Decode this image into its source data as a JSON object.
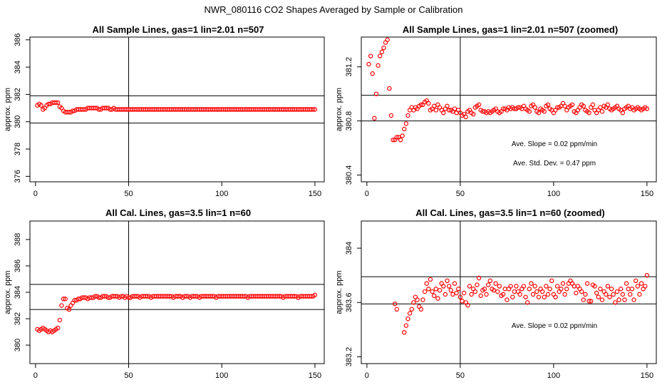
{
  "figure": {
    "title": "NWR_080116  CO2 Shapes Averaged by Sample or Calibration"
  },
  "colors": {
    "points": "#ff0000",
    "axes": "#000000",
    "lines": "#000000",
    "background": "#ffffff"
  },
  "chart_data": [
    {
      "type": "scatter",
      "title": "All Sample Lines, gas=1 lin=2.01 n=507",
      "xlabel": "",
      "ylabel": "approx. ppm",
      "xlim": [
        -3,
        155
      ],
      "ylim": [
        375.6,
        386.2
      ],
      "xticks": [
        0,
        50,
        100,
        150
      ],
      "yticks": [
        376,
        378,
        380,
        382,
        384,
        386
      ],
      "hlines": [
        381.9,
        379.9
      ],
      "vline": 50,
      "annotations": [],
      "x": [
        1,
        2,
        3,
        4,
        5,
        6,
        7,
        8,
        9,
        10,
        11,
        12,
        13,
        14,
        15,
        16,
        17,
        18,
        19,
        20,
        21,
        22,
        23,
        24,
        25,
        26,
        27,
        28,
        29,
        30,
        31,
        32,
        33,
        34,
        35,
        36,
        37,
        38,
        39,
        40,
        41,
        42,
        43,
        44,
        45,
        46,
        47,
        48,
        49,
        50,
        51,
        52,
        53,
        54,
        55,
        56,
        57,
        58,
        59,
        60,
        61,
        62,
        63,
        64,
        65,
        66,
        67,
        68,
        69,
        70,
        71,
        72,
        73,
        74,
        75,
        76,
        77,
        78,
        79,
        80,
        81,
        82,
        83,
        84,
        85,
        86,
        87,
        88,
        89,
        90,
        91,
        92,
        93,
        94,
        95,
        96,
        97,
        98,
        99,
        100,
        101,
        102,
        103,
        104,
        105,
        106,
        107,
        108,
        109,
        110,
        111,
        112,
        113,
        114,
        115,
        116,
        117,
        118,
        119,
        120,
        121,
        122,
        123,
        124,
        125,
        126,
        127,
        128,
        129,
        130,
        131,
        132,
        133,
        134,
        135,
        136,
        137,
        138,
        139,
        140,
        141,
        142,
        143,
        144,
        145,
        146,
        147,
        148,
        149,
        150
      ],
      "y": [
        381.2,
        381.3,
        381.2,
        380.9,
        381.0,
        381.2,
        381.3,
        381.3,
        381.4,
        381.4,
        381.4,
        381.4,
        381.1,
        381.0,
        380.8,
        380.7,
        380.7,
        380.7,
        380.7,
        380.8,
        380.8,
        380.9,
        380.9,
        380.9,
        380.9,
        380.9,
        380.9,
        381.0,
        381.0,
        381.0,
        381.0,
        381.0,
        381.0,
        380.9,
        380.9,
        381.0,
        381.0,
        381.0,
        381.0,
        380.9,
        380.9,
        381.0,
        380.9,
        380.9,
        380.9,
        380.9,
        380.9,
        380.9,
        380.9,
        380.9,
        380.9,
        380.9,
        380.9,
        380.9,
        380.9,
        380.9,
        380.9,
        380.9,
        380.9,
        380.9,
        380.9,
        380.9,
        380.9,
        380.9,
        380.9,
        380.9,
        380.9,
        380.9,
        380.9,
        380.9,
        380.9,
        380.9,
        380.9,
        380.9,
        380.9,
        380.9,
        380.9,
        380.9,
        380.9,
        380.9,
        380.9,
        380.9,
        380.9,
        380.9,
        380.9,
        380.9,
        380.9,
        380.9,
        380.9,
        380.9,
        380.9,
        380.9,
        380.9,
        380.9,
        380.9,
        380.9,
        380.9,
        380.9,
        380.9,
        380.9,
        380.9,
        380.9,
        380.9,
        380.9,
        380.9,
        380.9,
        380.9,
        380.9,
        380.9,
        380.9,
        380.9,
        380.9,
        380.9,
        380.9,
        380.9,
        380.9,
        380.9,
        380.9,
        380.9,
        380.9,
        380.9,
        380.9,
        380.9,
        380.9,
        380.9,
        380.9,
        380.9,
        380.9,
        380.9,
        380.9,
        380.9,
        380.9,
        380.9,
        380.9,
        380.9,
        380.9,
        380.9,
        380.9,
        380.9,
        380.9,
        380.9,
        380.9,
        380.9,
        380.9,
        380.9,
        380.9,
        380.9,
        380.9,
        380.9,
        380.9
      ]
    },
    {
      "type": "scatter",
      "title": "All Sample Lines, gas=1 lin=2.01 n=507 (zoomed)",
      "xlabel": "",
      "ylabel": "approx. ppm",
      "xlim": [
        -3,
        155
      ],
      "ylim": [
        380.35,
        381.42
      ],
      "xticks": [
        0,
        50,
        100,
        150
      ],
      "yticks": [
        380.4,
        380.8,
        381.2
      ],
      "hlines": [
        380.99,
        380.8
      ],
      "vline": 50,
      "annotations": [
        "Ave. Slope =  0.02  ppm/min",
        "Ave. Std. Dev. =  0.47  ppm"
      ],
      "x": [
        1,
        2,
        3,
        4,
        5,
        6,
        7,
        8,
        9,
        10,
        11,
        12,
        13,
        14,
        15,
        16,
        17,
        18,
        19,
        20,
        21,
        22,
        23,
        24,
        25,
        26,
        27,
        28,
        29,
        30,
        31,
        32,
        33,
        34,
        35,
        36,
        37,
        38,
        39,
        40,
        41,
        42,
        43,
        44,
        45,
        46,
        47,
        48,
        49,
        50,
        51,
        52,
        53,
        54,
        55,
        56,
        57,
        58,
        59,
        60,
        61,
        62,
        63,
        64,
        65,
        66,
        67,
        68,
        69,
        70,
        71,
        72,
        73,
        74,
        75,
        76,
        77,
        78,
        79,
        80,
        81,
        82,
        83,
        84,
        85,
        86,
        87,
        88,
        89,
        90,
        91,
        92,
        93,
        94,
        95,
        96,
        97,
        98,
        99,
        100,
        101,
        102,
        103,
        104,
        105,
        106,
        107,
        108,
        109,
        110,
        111,
        112,
        113,
        114,
        115,
        116,
        117,
        118,
        119,
        120,
        121,
        122,
        123,
        124,
        125,
        126,
        127,
        128,
        129,
        130,
        131,
        132,
        133,
        134,
        135,
        136,
        137,
        138,
        139,
        140,
        141,
        142,
        143,
        144,
        145,
        146,
        147,
        148,
        149,
        150
      ],
      "y": [
        381.22,
        381.28,
        381.15,
        380.82,
        381.0,
        381.21,
        381.28,
        381.31,
        381.34,
        381.38,
        381.4,
        381.04,
        380.84,
        380.66,
        380.66,
        380.68,
        380.68,
        380.66,
        380.69,
        380.74,
        380.78,
        380.84,
        380.88,
        380.9,
        380.88,
        380.9,
        380.89,
        380.91,
        380.92,
        380.92,
        380.94,
        380.95,
        380.93,
        380.88,
        380.89,
        380.91,
        380.88,
        380.92,
        380.9,
        380.88,
        380.86,
        380.89,
        380.91,
        380.88,
        380.88,
        380.87,
        380.89,
        380.86,
        380.88,
        380.86,
        380.84,
        380.85,
        380.83,
        380.87,
        380.88,
        380.86,
        380.85,
        380.9,
        380.91,
        380.92,
        380.88,
        380.87,
        380.87,
        380.86,
        380.87,
        380.86,
        380.87,
        380.88,
        380.89,
        380.87,
        380.86,
        380.87,
        380.89,
        380.89,
        380.88,
        380.9,
        380.89,
        380.9,
        380.89,
        380.89,
        380.9,
        380.9,
        380.89,
        380.91,
        380.89,
        380.88,
        380.87,
        380.91,
        380.92,
        380.9,
        380.87,
        380.86,
        380.89,
        380.88,
        380.87,
        380.91,
        380.92,
        380.89,
        380.88,
        380.86,
        380.88,
        380.9,
        380.9,
        380.91,
        380.93,
        380.91,
        380.88,
        380.9,
        380.91,
        380.92,
        380.87,
        380.86,
        380.88,
        380.9,
        380.92,
        380.91,
        380.88,
        380.87,
        380.86,
        380.9,
        380.92,
        380.88,
        380.86,
        380.88,
        380.9,
        380.87,
        380.91,
        380.9,
        380.92,
        380.89,
        380.88,
        380.89,
        380.9,
        380.91,
        380.89,
        380.88,
        380.86,
        380.89,
        380.9,
        380.91,
        380.89,
        380.9,
        380.88,
        380.89,
        380.9,
        380.89,
        380.88,
        380.89,
        380.9,
        380.89
      ]
    },
    {
      "type": "scatter",
      "title": "All Cal. Lines, gas=3.5 lin=1 n=60",
      "xlabel": "",
      "ylabel": "approx. ppm",
      "xlim": [
        -3,
        155
      ],
      "ylim": [
        378.6,
        389.4
      ],
      "xticks": [
        0,
        50,
        100,
        150
      ],
      "yticks": [
        380,
        382,
        384,
        386,
        388
      ],
      "hlines": [
        384.6,
        382.7
      ],
      "vline": 50,
      "annotations": [],
      "x": [
        1,
        2,
        3,
        4,
        5,
        6,
        7,
        8,
        9,
        10,
        11,
        12,
        13,
        14,
        15,
        16,
        17,
        18,
        19,
        20,
        21,
        22,
        23,
        24,
        25,
        26,
        27,
        28,
        29,
        30,
        31,
        32,
        33,
        34,
        35,
        36,
        37,
        38,
        39,
        40,
        41,
        42,
        43,
        44,
        45,
        46,
        47,
        48,
        49,
        50,
        51,
        52,
        53,
        54,
        55,
        56,
        57,
        58,
        59,
        60,
        61,
        62,
        63,
        64,
        65,
        66,
        67,
        68,
        69,
        70,
        71,
        72,
        73,
        74,
        75,
        76,
        77,
        78,
        79,
        80,
        81,
        82,
        83,
        84,
        85,
        86,
        87,
        88,
        89,
        90,
        91,
        92,
        93,
        94,
        95,
        96,
        97,
        98,
        99,
        100,
        101,
        102,
        103,
        104,
        105,
        106,
        107,
        108,
        109,
        110,
        111,
        112,
        113,
        114,
        115,
        116,
        117,
        118,
        119,
        120,
        121,
        122,
        123,
        124,
        125,
        126,
        127,
        128,
        129,
        130,
        131,
        132,
        133,
        134,
        135,
        136,
        137,
        138,
        139,
        140,
        141,
        142,
        143,
        144,
        145,
        146,
        147,
        148,
        149,
        150
      ],
      "y": [
        381.2,
        381.1,
        381.2,
        381.3,
        381.2,
        381.1,
        381.0,
        381.1,
        381.0,
        381.1,
        381.2,
        381.3,
        381.9,
        383.0,
        383.5,
        383.5,
        382.8,
        382.7,
        383.0,
        383.2,
        383.4,
        383.4,
        383.5,
        383.5,
        383.6,
        383.6,
        383.6,
        383.5,
        383.6,
        383.6,
        383.6,
        383.7,
        383.7,
        383.6,
        383.6,
        383.7,
        383.7,
        383.7,
        383.6,
        383.6,
        383.7,
        383.7,
        383.7,
        383.7,
        383.6,
        383.7,
        383.7,
        383.6,
        383.7,
        383.6,
        383.6,
        383.7,
        383.7,
        383.7,
        383.7,
        383.6,
        383.7,
        383.7,
        383.7,
        383.7,
        383.7,
        383.6,
        383.7,
        383.7,
        383.7,
        383.7,
        383.7,
        383.7,
        383.7,
        383.7,
        383.7,
        383.7,
        383.7,
        383.6,
        383.7,
        383.7,
        383.7,
        383.7,
        383.6,
        383.7,
        383.7,
        383.7,
        383.6,
        383.7,
        383.7,
        383.7,
        383.7,
        383.6,
        383.7,
        383.7,
        383.7,
        383.7,
        383.7,
        383.7,
        383.7,
        383.7,
        383.6,
        383.7,
        383.7,
        383.7,
        383.7,
        383.7,
        383.7,
        383.7,
        383.7,
        383.7,
        383.7,
        383.7,
        383.7,
        383.7,
        383.7,
        383.7,
        383.7,
        383.6,
        383.7,
        383.7,
        383.7,
        383.7,
        383.7,
        383.7,
        383.7,
        383.7,
        383.7,
        383.7,
        383.7,
        383.7,
        383.7,
        383.7,
        383.7,
        383.7,
        383.7,
        383.7,
        383.6,
        383.7,
        383.7,
        383.7,
        383.7,
        383.7,
        383.7,
        383.7,
        383.6,
        383.7,
        383.7,
        383.7,
        383.7,
        383.7,
        383.7,
        383.7,
        383.7,
        383.8
      ]
    },
    {
      "type": "scatter",
      "title": "All Cal. Lines, gas=3.5 lin=1 n=60 (zoomed)",
      "xlabel": "",
      "ylabel": "approx. ppm",
      "xlim": [
        -3,
        155
      ],
      "ylim": [
        383.15,
        384.2
      ],
      "xticks": [
        0,
        50,
        100,
        150
      ],
      "yticks": [
        383.2,
        383.6,
        384.0
      ],
      "hlines": [
        383.79,
        383.59
      ],
      "vline": 50,
      "annotations": [
        "Ave. Slope =  0.02  ppm/min"
      ],
      "x": [
        15,
        16,
        20,
        21,
        22,
        23,
        24,
        25,
        26,
        27,
        28,
        29,
        30,
        31,
        32,
        33,
        34,
        35,
        36,
        37,
        38,
        39,
        40,
        41,
        42,
        43,
        44,
        45,
        46,
        47,
        48,
        49,
        50,
        51,
        52,
        53,
        54,
        55,
        56,
        57,
        58,
        59,
        60,
        61,
        62,
        63,
        64,
        65,
        66,
        67,
        68,
        69,
        70,
        71,
        72,
        73,
        74,
        75,
        76,
        77,
        78,
        79,
        80,
        81,
        82,
        83,
        84,
        85,
        86,
        87,
        88,
        89,
        90,
        91,
        92,
        93,
        94,
        95,
        96,
        97,
        98,
        99,
        100,
        101,
        102,
        103,
        104,
        105,
        106,
        107,
        108,
        109,
        110,
        111,
        112,
        113,
        114,
        115,
        116,
        117,
        118,
        119,
        120,
        121,
        122,
        123,
        124,
        125,
        126,
        127,
        128,
        129,
        130,
        131,
        132,
        133,
        134,
        135,
        136,
        137,
        138,
        139,
        140,
        141,
        142,
        143,
        144,
        145,
        146,
        147,
        148,
        149,
        150
      ],
      "y": [
        383.59,
        383.55,
        383.38,
        383.43,
        383.48,
        383.52,
        383.55,
        383.6,
        383.64,
        383.62,
        383.57,
        383.55,
        383.62,
        383.68,
        383.74,
        383.7,
        383.77,
        383.68,
        383.65,
        383.7,
        383.63,
        383.69,
        383.74,
        383.72,
        383.66,
        383.76,
        383.72,
        383.69,
        383.66,
        383.74,
        383.67,
        383.7,
        383.64,
        383.61,
        383.67,
        383.6,
        383.58,
        383.72,
        383.66,
        383.7,
        383.68,
        383.73,
        383.78,
        383.65,
        383.69,
        383.7,
        383.66,
        383.73,
        383.76,
        383.7,
        383.69,
        383.74,
        383.68,
        383.72,
        383.65,
        383.66,
        383.7,
        383.62,
        383.7,
        383.72,
        383.64,
        383.68,
        383.72,
        383.68,
        383.66,
        383.7,
        383.72,
        383.64,
        383.6,
        383.7,
        383.74,
        383.66,
        383.72,
        383.68,
        383.64,
        383.7,
        383.68,
        383.64,
        383.72,
        383.66,
        383.7,
        383.76,
        383.66,
        383.64,
        383.72,
        383.68,
        383.7,
        383.74,
        383.66,
        383.7,
        383.74,
        383.76,
        383.74,
        383.72,
        383.67,
        383.72,
        383.7,
        383.68,
        383.62,
        383.66,
        383.74,
        383.61,
        383.61,
        383.73,
        383.72,
        383.67,
        383.64,
        383.7,
        383.62,
        383.68,
        383.66,
        383.72,
        383.64,
        383.7,
        383.66,
        383.6,
        383.68,
        383.62,
        383.7,
        383.66,
        383.62,
        383.74,
        383.7,
        383.66,
        383.7,
        383.62,
        383.76,
        383.72,
        383.66,
        383.74,
        383.7,
        383.72,
        383.8
      ]
    }
  ]
}
